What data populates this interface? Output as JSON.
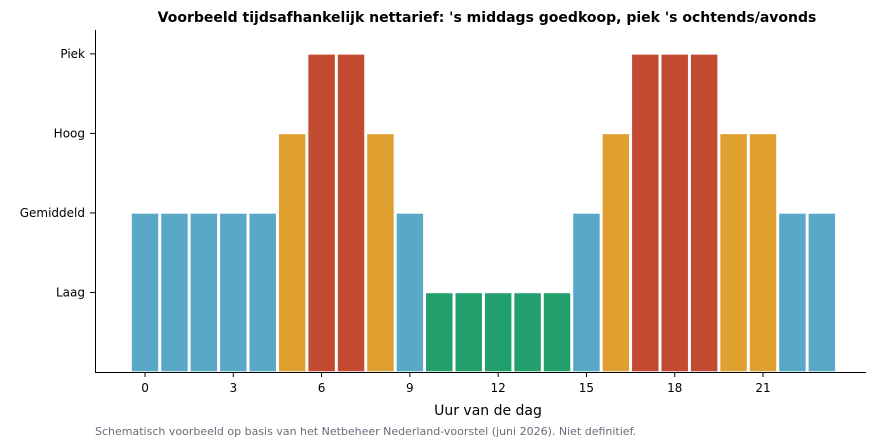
{
  "chart_data": {
    "type": "bar",
    "title": "Voorbeeld tijdsafhankelijk nettarief: 's middags goedkoop, piek 's ochtends/avonds",
    "xlabel": "Uur van de dag",
    "ylabel": "",
    "x": [
      0,
      1,
      2,
      3,
      4,
      5,
      6,
      7,
      8,
      9,
      10,
      11,
      12,
      13,
      14,
      15,
      16,
      17,
      18,
      19,
      20,
      21,
      22,
      23
    ],
    "values": [
      2,
      2,
      2,
      2,
      2,
      3,
      4,
      4,
      3,
      2,
      1,
      1,
      1,
      1,
      1,
      2,
      3,
      4,
      4,
      4,
      3,
      3,
      2,
      2
    ],
    "x_ticks": [
      "0",
      "3",
      "6",
      "9",
      "12",
      "15",
      "18",
      "21"
    ],
    "x_tick_values": [
      0,
      3,
      6,
      9,
      12,
      15,
      18,
      21
    ],
    "y_ticks": [
      "Laag",
      "Gemiddeld",
      "Hoog",
      "Piek"
    ],
    "y_tick_values": [
      1,
      2,
      3,
      4
    ],
    "xlim": [
      -1.7,
      24.5
    ],
    "ylim": [
      0,
      4.3
    ],
    "grid": false,
    "legend": "none",
    "level_colors": {
      "1": "#21a06e",
      "2": "#59a8c5",
      "3": "#e0a030",
      "4": "#c24a30"
    },
    "footnote": "Schematisch voorbeeld op basis van het Netbeheer Nederland-voorstel (juni 2026). Niet definitief."
  }
}
